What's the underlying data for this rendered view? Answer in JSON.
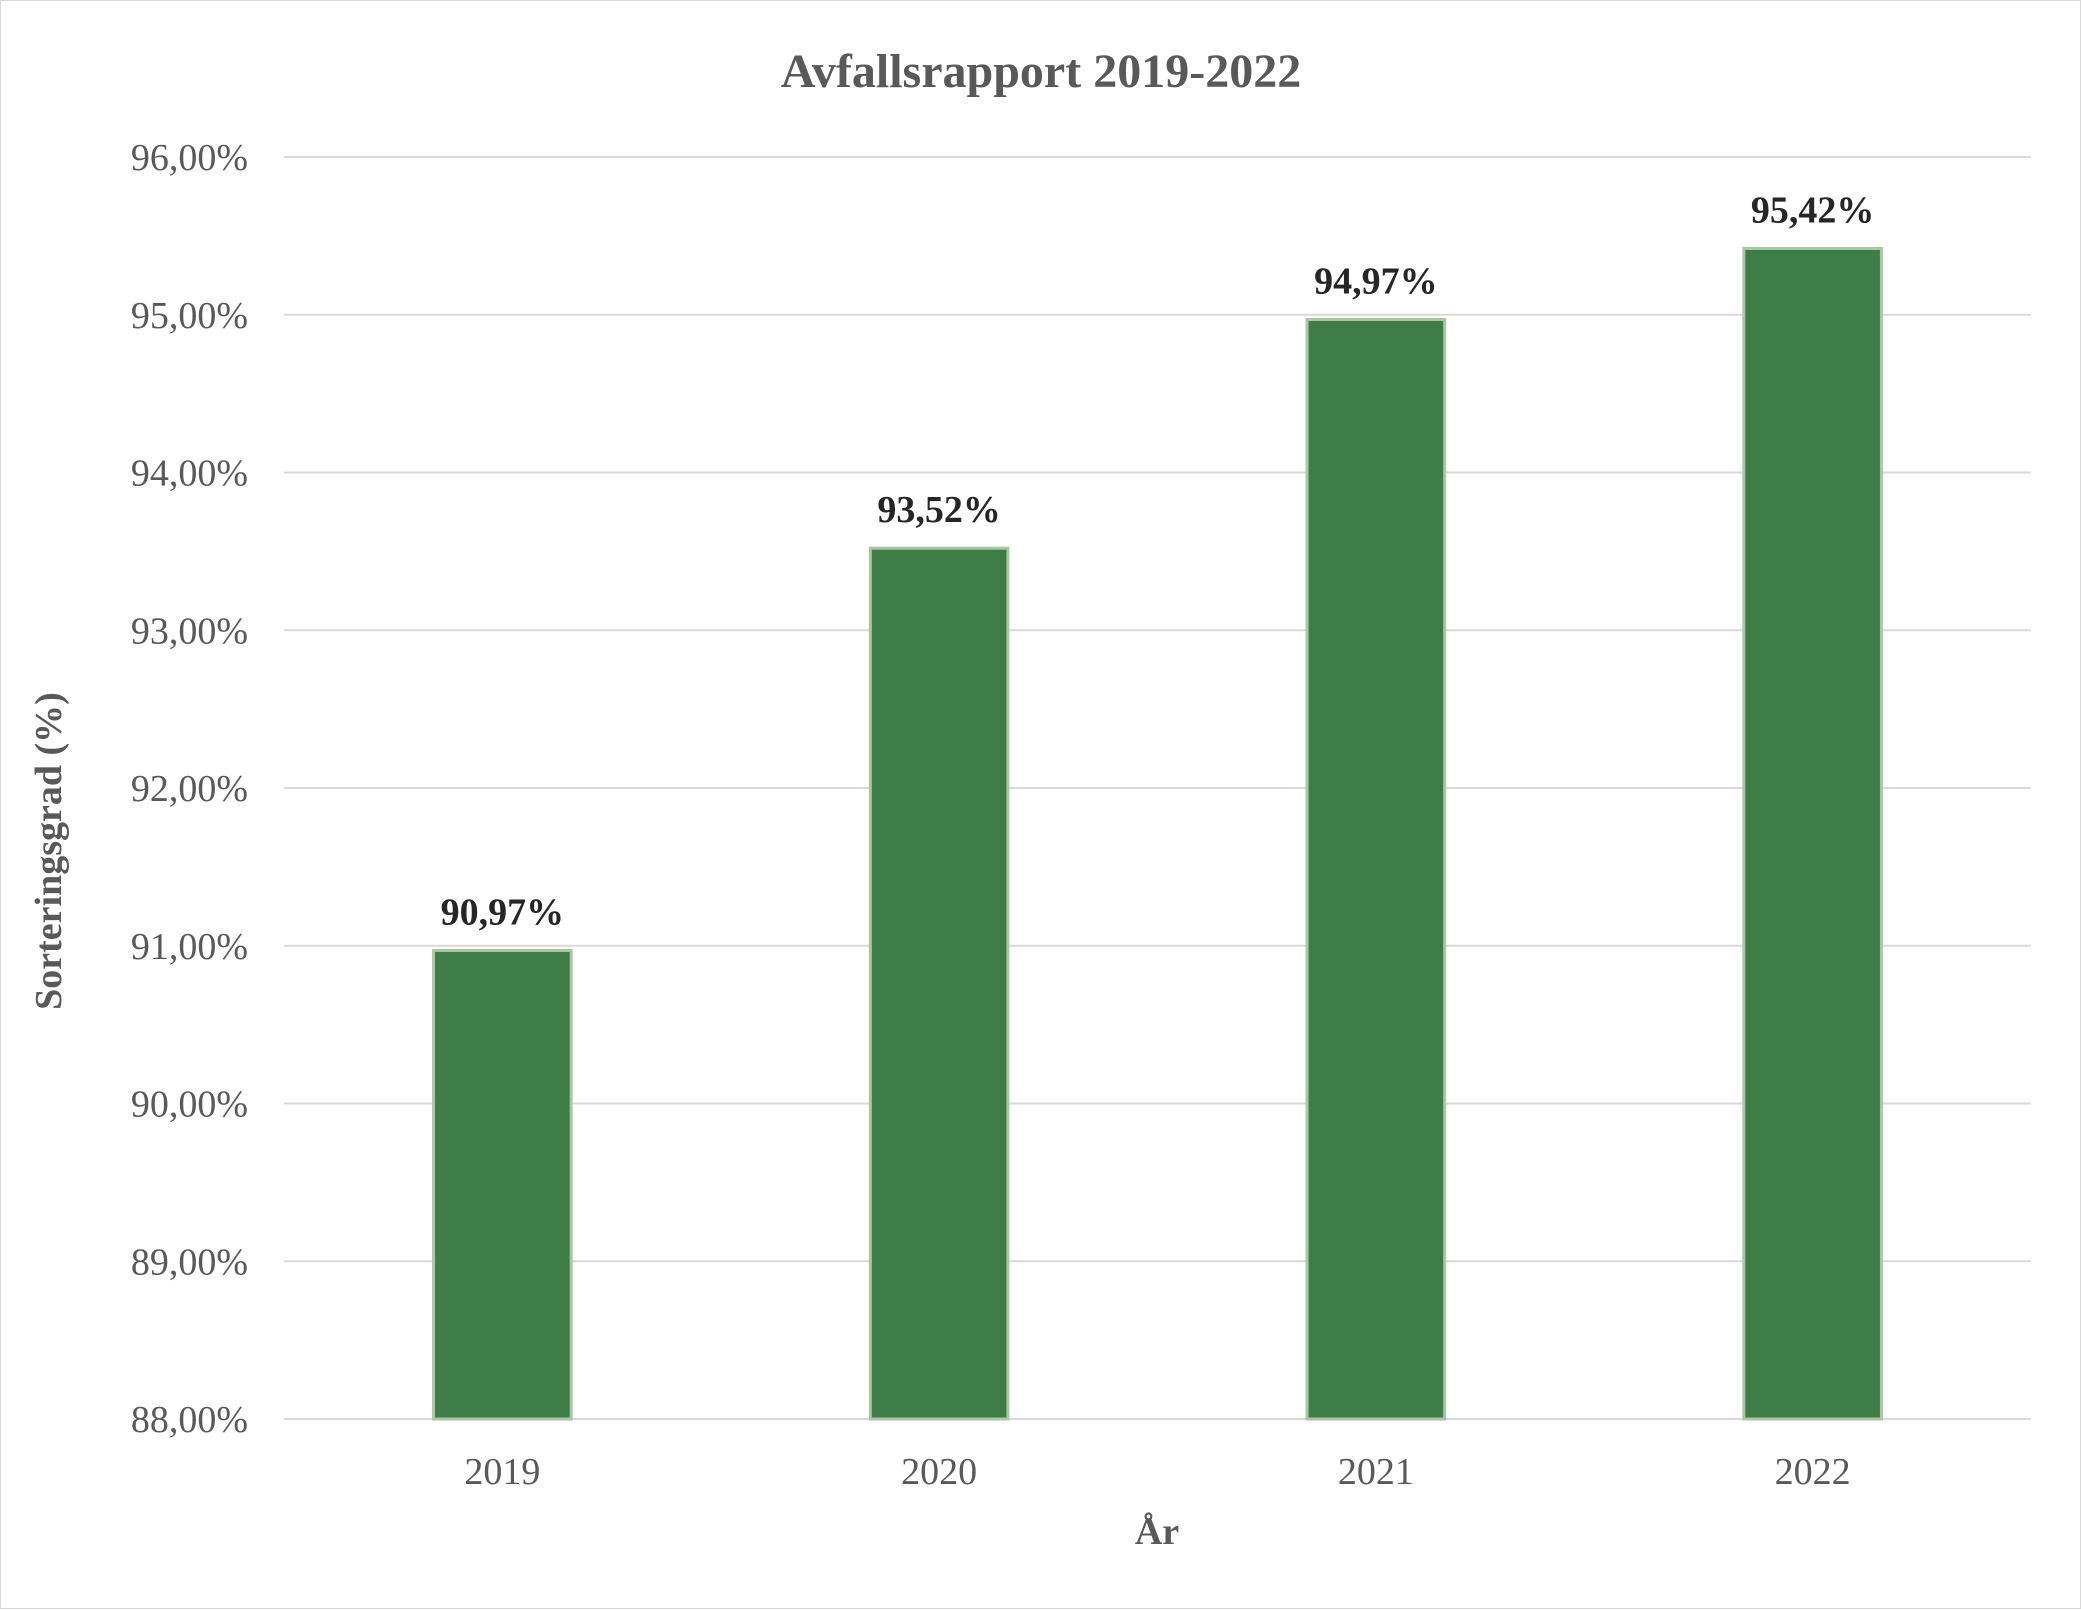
{
  "chart_data": {
    "type": "bar",
    "title": "Avfallsrapport 2019-2022",
    "xlabel": "År",
    "ylabel": "Sorteringsgrad (%)",
    "categories": [
      "2019",
      "2020",
      "2021",
      "2022"
    ],
    "values": [
      90.97,
      93.52,
      94.97,
      95.42
    ],
    "value_labels": [
      "90,97%",
      "93,52%",
      "94,97%",
      "95,42%"
    ],
    "ylim": [
      88,
      96
    ],
    "yticks": [
      88,
      89,
      90,
      91,
      92,
      93,
      94,
      95,
      96
    ],
    "ytick_labels": [
      "88,00%",
      "89,00%",
      "90,00%",
      "91,00%",
      "92,00%",
      "93,00%",
      "94,00%",
      "95,00%",
      "96,00%"
    ],
    "grid": true,
    "legend": "none",
    "bar_color": "#3e7d45"
  }
}
